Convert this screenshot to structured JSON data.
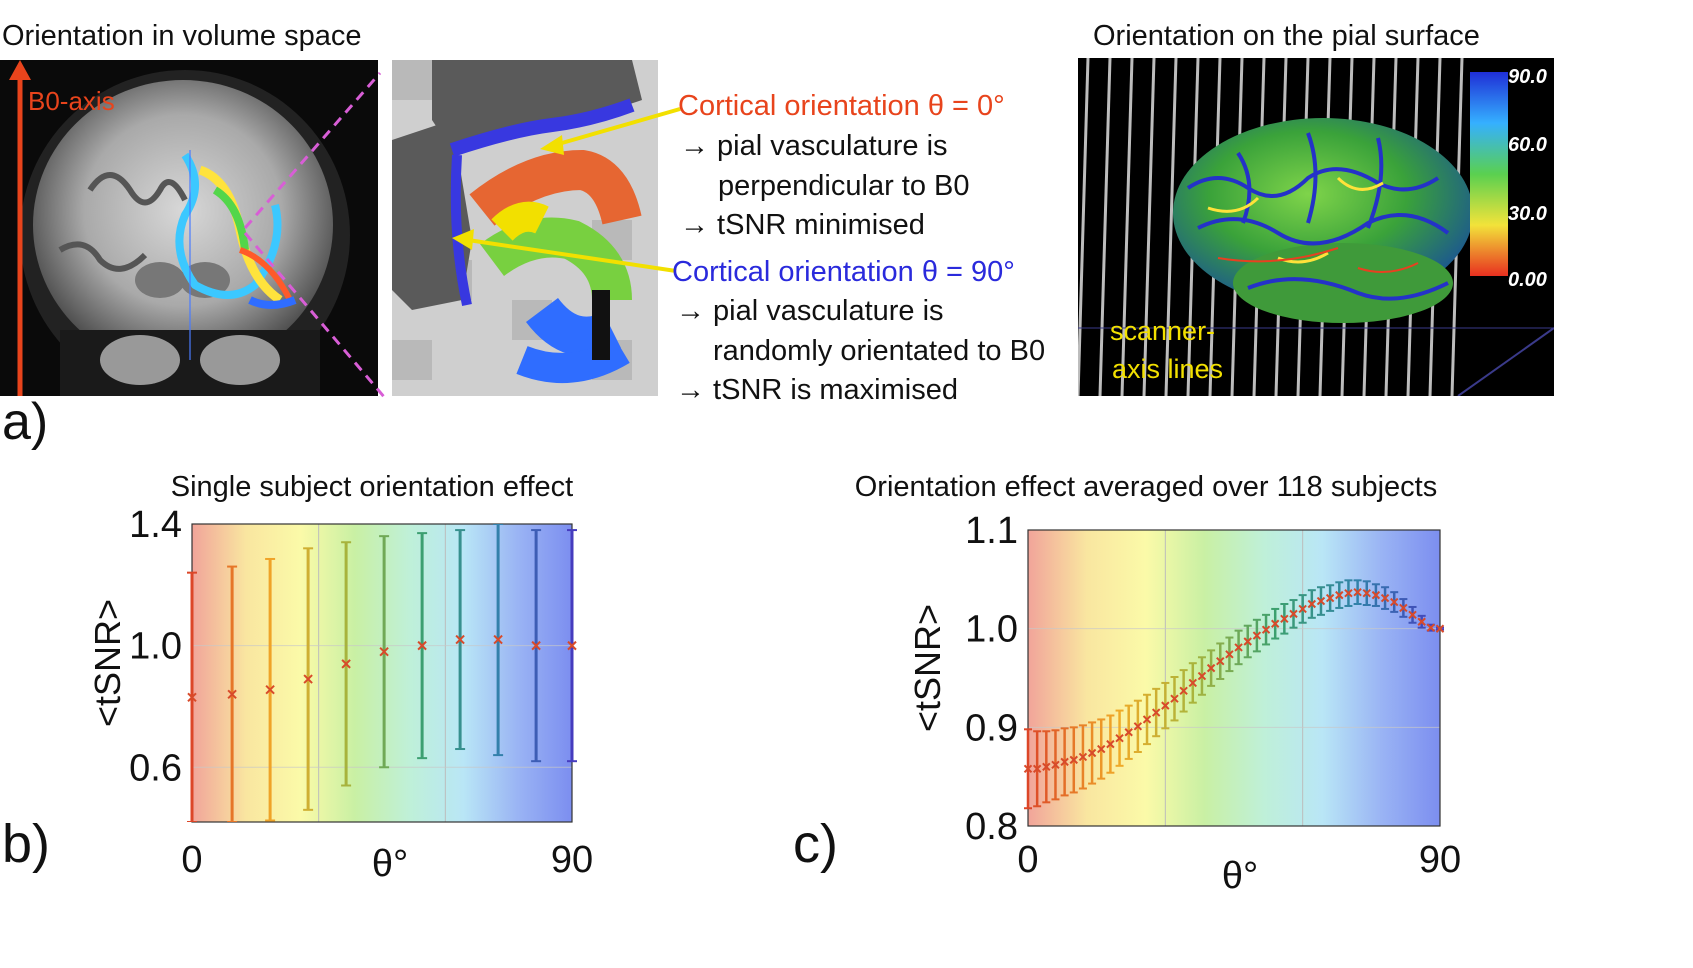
{
  "panel_a": {
    "label": "a)",
    "volume_title": "Orientation in volume space",
    "b0_label": "B0-axis",
    "surface_title": "Orientation on the pial surface",
    "scanner_label_1": "scanner-",
    "scanner_label_2": "axis lines",
    "colorbar_ticks": [
      "90.0",
      "60.0",
      "30.0",
      "0.00"
    ],
    "desc": {
      "heading_0": "Cortical orientation θ = 0°",
      "line_0a": "→ pial vasculature is",
      "line_0b": "perpendicular to B0",
      "line_0c": "→ tSNR minimised",
      "heading_90": "Cortical orientation θ = 90°",
      "line_90a": "→ pial vasculature is",
      "line_90b": "randomly orientated to B0",
      "line_90c": "→ tSNR is maximised"
    },
    "colors": {
      "red": "#e8441c",
      "blue": "#2a2adc",
      "yellow": "#f2e000"
    }
  },
  "chart_data": [
    {
      "type": "scatter",
      "panel": "b)",
      "title": "Single subject orientation effect",
      "xlabel": "θ°",
      "ylabel": "<tSNR>",
      "xlim": [
        0,
        90
      ],
      "ylim": [
        0.42,
        1.4
      ],
      "xticks": [
        "0",
        "90"
      ],
      "yticks": [
        "1.4",
        "1.0",
        "0.6"
      ],
      "ytick_values": [
        1.4,
        1.0,
        0.6
      ],
      "grid_x": [
        0,
        30,
        60,
        90
      ],
      "series": [
        {
          "name": "mean with error bars",
          "x": [
            0,
            9.5,
            18.5,
            27.5,
            36.5,
            45.5,
            54.5,
            63.5,
            72.5,
            81.5,
            90
          ],
          "values": [
            0.83,
            0.84,
            0.855,
            0.89,
            0.94,
            0.98,
            1.0,
            1.02,
            1.02,
            1.0,
            1.0
          ],
          "err": [
            0.41,
            0.42,
            0.43,
            0.43,
            0.4,
            0.38,
            0.37,
            0.36,
            0.38,
            0.38,
            0.38
          ]
        }
      ]
    },
    {
      "type": "scatter",
      "panel": "c)",
      "title": "Orientation effect averaged over 118 subjects",
      "xlabel": "θ°",
      "ylabel": "<tSNR>",
      "xlim": [
        0,
        90
      ],
      "ylim": [
        0.8,
        1.1
      ],
      "xticks": [
        "0",
        "90"
      ],
      "yticks": [
        "1.1",
        "1.0",
        "0.9",
        "0.8"
      ],
      "ytick_values": [
        1.1,
        1.0,
        0.9,
        0.8
      ],
      "grid_x": [
        0,
        30,
        60,
        90
      ],
      "series": [
        {
          "name": "mean with error bars",
          "x": [
            0,
            2,
            4,
            6,
            8,
            10,
            12,
            14,
            16,
            18,
            20,
            22,
            24,
            26,
            28,
            30,
            32,
            34,
            36,
            38,
            40,
            42,
            44,
            46,
            48,
            50,
            52,
            54,
            56,
            58,
            60,
            62,
            64,
            66,
            68,
            70,
            72,
            74,
            76,
            78,
            80,
            82,
            84,
            86,
            88,
            90
          ],
          "values": [
            0.858,
            0.858,
            0.86,
            0.862,
            0.865,
            0.867,
            0.87,
            0.874,
            0.878,
            0.883,
            0.889,
            0.895,
            0.901,
            0.908,
            0.915,
            0.922,
            0.929,
            0.937,
            0.945,
            0.952,
            0.96,
            0.967,
            0.974,
            0.981,
            0.987,
            0.993,
            0.999,
            1.005,
            1.01,
            1.015,
            1.02,
            1.025,
            1.028,
            1.031,
            1.034,
            1.036,
            1.037,
            1.036,
            1.034,
            1.031,
            1.027,
            1.021,
            1.014,
            1.007,
            1.001,
            1.0
          ],
          "err": [
            0.04,
            0.038,
            0.036,
            0.035,
            0.034,
            0.033,
            0.032,
            0.031,
            0.03,
            0.029,
            0.028,
            0.027,
            0.026,
            0.025,
            0.024,
            0.023,
            0.022,
            0.021,
            0.02,
            0.019,
            0.018,
            0.018,
            0.017,
            0.017,
            0.016,
            0.016,
            0.015,
            0.015,
            0.015,
            0.014,
            0.014,
            0.014,
            0.014,
            0.013,
            0.013,
            0.013,
            0.012,
            0.012,
            0.011,
            0.011,
            0.01,
            0.009,
            0.008,
            0.006,
            0.003,
            0.001
          ]
        }
      ]
    }
  ]
}
